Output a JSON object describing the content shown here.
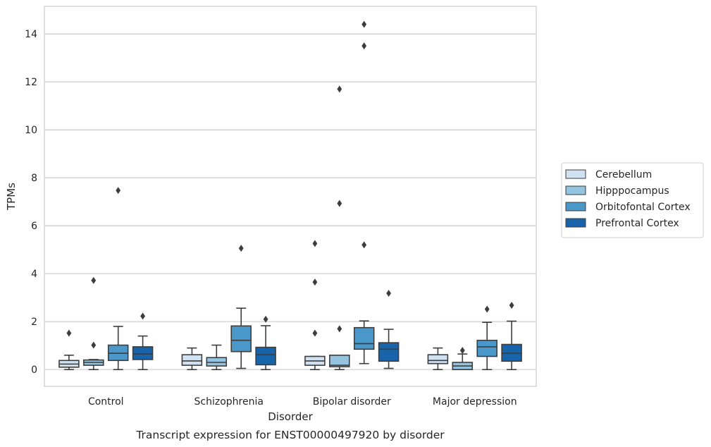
{
  "chart_data": {
    "type": "box",
    "caption": "Transcript expression for ENST00000497920 by disorder",
    "xlabel": "Disorder",
    "ylabel": "TPMs",
    "ylim": [
      -0.7,
      15.15
    ],
    "yticks": [
      0,
      2,
      4,
      6,
      8,
      10,
      12,
      14
    ],
    "grid": "horizontal",
    "legend_position": "right",
    "categories": [
      "Control",
      "Schizophrenia",
      "Bipolar disorder",
      "Major depression"
    ],
    "series": [
      {
        "name": "Cerebellum",
        "color": "#d0e1f2",
        "boxes": [
          {
            "whislo": 0.0,
            "q1": 0.1,
            "med": 0.23,
            "q3": 0.38,
            "whishi": 0.6,
            "fliers": [
              1.52
            ]
          },
          {
            "whislo": 0.0,
            "q1": 0.18,
            "med": 0.36,
            "q3": 0.62,
            "whishi": 0.9,
            "fliers": []
          },
          {
            "whislo": 0.0,
            "q1": 0.18,
            "med": 0.36,
            "q3": 0.55,
            "whishi": 0.55,
            "fliers": [
              1.52,
              3.65,
              5.26
            ]
          },
          {
            "whislo": 0.0,
            "q1": 0.25,
            "med": 0.38,
            "q3": 0.62,
            "whishi": 0.9,
            "fliers": []
          }
        ]
      },
      {
        "name": "Hipppocampus",
        "color": "#94c4df",
        "boxes": [
          {
            "whislo": 0.0,
            "q1": 0.18,
            "med": 0.3,
            "q3": 0.4,
            "whishi": 0.42,
            "fliers": [
              1.02,
              3.72
            ]
          },
          {
            "whislo": 0.0,
            "q1": 0.15,
            "med": 0.3,
            "q3": 0.5,
            "whishi": 1.02,
            "fliers": []
          },
          {
            "whislo": 0.0,
            "q1": 0.12,
            "med": 0.18,
            "q3": 0.6,
            "whishi": 0.6,
            "fliers": [
              1.7,
              6.93,
              11.7
            ]
          },
          {
            "whislo": 0.0,
            "q1": 0.0,
            "med": 0.15,
            "q3": 0.3,
            "whishi": 0.65,
            "fliers": [
              0.8
            ]
          }
        ]
      },
      {
        "name": "Orbitofontal Cortex",
        "color": "#4a98c9",
        "boxes": [
          {
            "whislo": 0.0,
            "q1": 0.38,
            "med": 0.68,
            "q3": 1.02,
            "whishi": 1.8,
            "fliers": [
              7.47
            ]
          },
          {
            "whislo": 0.05,
            "q1": 0.75,
            "med": 1.22,
            "q3": 1.82,
            "whishi": 2.56,
            "fliers": [
              5.06
            ]
          },
          {
            "whislo": 0.25,
            "q1": 0.85,
            "med": 1.08,
            "q3": 1.75,
            "whishi": 2.03,
            "fliers": [
              5.2,
              13.5,
              14.4
            ]
          },
          {
            "whislo": 0.0,
            "q1": 0.55,
            "med": 0.95,
            "q3": 1.22,
            "whishi": 1.97,
            "fliers": [
              2.52
            ]
          }
        ]
      },
      {
        "name": "Prefrontal Cortex",
        "color": "#1764ab",
        "boxes": [
          {
            "whislo": 0.0,
            "q1": 0.42,
            "med": 0.65,
            "q3": 0.95,
            "whishi": 1.4,
            "fliers": [
              2.23
            ]
          },
          {
            "whislo": 0.0,
            "q1": 0.2,
            "med": 0.62,
            "q3": 0.93,
            "whishi": 1.83,
            "fliers": [
              2.1
            ]
          },
          {
            "whislo": 0.05,
            "q1": 0.35,
            "med": 0.85,
            "q3": 1.12,
            "whishi": 1.68,
            "fliers": [
              3.18
            ]
          },
          {
            "whislo": 0.0,
            "q1": 0.35,
            "med": 0.68,
            "q3": 1.05,
            "whishi": 2.02,
            "fliers": [
              2.68
            ]
          }
        ]
      }
    ]
  }
}
